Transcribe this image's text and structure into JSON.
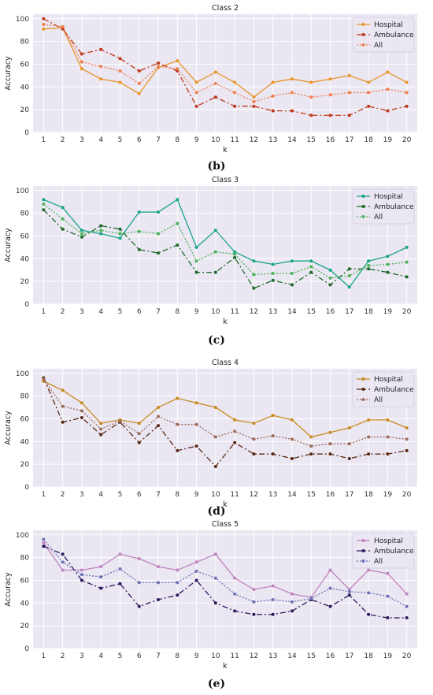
{
  "chart_data": [
    {
      "type": "line",
      "title": "Class 2",
      "caption": "(b)",
      "xlabel": "k",
      "ylabel": "Accuracy",
      "ylim": [
        0,
        100
      ],
      "yticks": [
        0,
        20,
        40,
        60,
        80,
        100
      ],
      "x": [
        1,
        2,
        3,
        4,
        5,
        6,
        7,
        8,
        9,
        10,
        11,
        12,
        13,
        14,
        15,
        16,
        17,
        18,
        19,
        20
      ],
      "legend_position": "top-right",
      "grid": true,
      "series": [
        {
          "name": "Hospital",
          "color": "#e8962a",
          "dash": "",
          "values": [
            91,
            92,
            56,
            47,
            44,
            34,
            57,
            63,
            44,
            53,
            44,
            31,
            44,
            47,
            44,
            47,
            50,
            44,
            53,
            44
          ]
        },
        {
          "name": "Ambulance",
          "color": "#c0391b",
          "dash": "7,3,2,3",
          "values": [
            100,
            91,
            69,
            73,
            65,
            54,
            61,
            54,
            23,
            31,
            23,
            23,
            19,
            19,
            15,
            15,
            15,
            23,
            19,
            23
          ]
        },
        {
          "name": "All",
          "color": "#f07f4e",
          "dash": "2,2",
          "values": [
            95,
            93,
            62,
            58,
            54,
            43,
            58,
            56,
            35,
            43,
            35,
            27,
            32,
            35,
            31,
            33,
            35,
            35,
            38,
            35
          ]
        }
      ]
    },
    {
      "type": "line",
      "title": "Class 3",
      "caption": "(c)",
      "xlabel": "k",
      "ylabel": "Accuracy",
      "ylim": [
        0,
        100
      ],
      "yticks": [
        0,
        20,
        40,
        60,
        80,
        100
      ],
      "x": [
        1,
        2,
        3,
        4,
        5,
        6,
        7,
        8,
        9,
        10,
        11,
        12,
        13,
        14,
        15,
        16,
        17,
        18,
        19,
        20
      ],
      "legend_position": "top-right",
      "grid": true,
      "series": [
        {
          "name": "Hospital",
          "color": "#1aa58a",
          "dash": "",
          "values": [
            92,
            85,
            65,
            62,
            58,
            81,
            81,
            92,
            50,
            65,
            46,
            38,
            35,
            38,
            38,
            30,
            15,
            38,
            42,
            50
          ]
        },
        {
          "name": "Ambulance",
          "color": "#1d6b2a",
          "dash": "7,3,2,3",
          "values": [
            83,
            66,
            59,
            69,
            66,
            48,
            45,
            52,
            28,
            28,
            41,
            14,
            21,
            17,
            28,
            17,
            31,
            31,
            28,
            24
          ]
        },
        {
          "name": "All",
          "color": "#4fb35c",
          "dash": "2,2",
          "values": [
            88,
            75,
            62,
            65,
            62,
            64,
            62,
            71,
            38,
            46,
            44,
            26,
            27,
            27,
            33,
            23,
            25,
            34,
            35,
            37
          ]
        }
      ]
    },
    {
      "type": "line",
      "title": "Class 4",
      "caption": "(d)",
      "xlabel": "k",
      "ylabel": "Accuracy",
      "ylim": [
        0,
        100
      ],
      "yticks": [
        0,
        20,
        40,
        60,
        80,
        100
      ],
      "x": [
        1,
        2,
        3,
        4,
        5,
        6,
        7,
        8,
        9,
        10,
        11,
        12,
        13,
        14,
        15,
        16,
        17,
        18,
        19,
        20
      ],
      "legend_position": "top-right",
      "grid": true,
      "series": [
        {
          "name": "Hospital",
          "color": "#c88b1f",
          "dash": "",
          "values": [
            93,
            85,
            74,
            56,
            59,
            56,
            70,
            78,
            74,
            70,
            59,
            56,
            63,
            59,
            44,
            48,
            52,
            59,
            59,
            52
          ]
        },
        {
          "name": "Ambulance",
          "color": "#5a2a14",
          "dash": "7,3,2,3",
          "values": [
            96,
            57,
            61,
            46,
            57,
            39,
            54,
            32,
            36,
            18,
            39,
            29,
            29,
            25,
            29,
            29,
            25,
            29,
            29,
            32
          ]
        },
        {
          "name": "All",
          "color": "#9c6b5a",
          "dash": "2,2",
          "values": [
            95,
            71,
            67,
            51,
            58,
            47,
            62,
            55,
            55,
            44,
            49,
            42,
            45,
            42,
            36,
            38,
            38,
            44,
            44,
            42
          ]
        }
      ]
    },
    {
      "type": "line",
      "title": "Class 5",
      "caption": "(e)",
      "xlabel": "k",
      "ylabel": "Accuracy",
      "ylim": [
        0,
        100
      ],
      "yticks": [
        0,
        20,
        40,
        60,
        80,
        100
      ],
      "x": [
        1,
        2,
        3,
        4,
        5,
        6,
        7,
        8,
        9,
        10,
        11,
        12,
        13,
        14,
        15,
        16,
        17,
        18,
        19,
        20
      ],
      "legend_position": "top-right",
      "grid": true,
      "series": [
        {
          "name": "Hospital",
          "color": "#c084c0",
          "dash": "",
          "values": [
            93,
            69,
            69,
            72,
            83,
            79,
            72,
            69,
            76,
            83,
            62,
            52,
            55,
            48,
            45,
            69,
            52,
            69,
            66,
            48
          ]
        },
        {
          "name": "Ambulance",
          "color": "#2c1a5e",
          "dash": "7,3,2,3",
          "values": [
            90,
            83,
            60,
            53,
            57,
            37,
            43,
            47,
            60,
            40,
            33,
            30,
            30,
            33,
            43,
            37,
            47,
            30,
            27,
            27
          ]
        },
        {
          "name": "All",
          "color": "#6e73b8",
          "dash": "2,2",
          "values": [
            96,
            76,
            65,
            63,
            70,
            58,
            58,
            58,
            68,
            62,
            48,
            41,
            43,
            41,
            44,
            53,
            50,
            49,
            46,
            37
          ]
        }
      ]
    }
  ]
}
